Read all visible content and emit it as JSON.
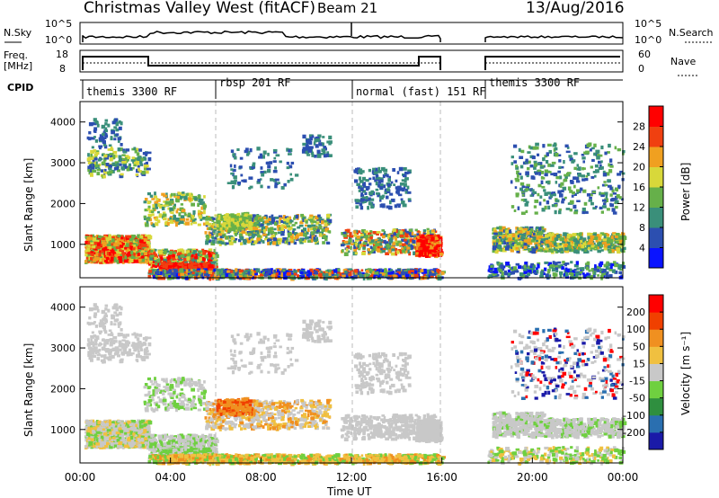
{
  "header": {
    "title": "Christmas Valley West (fitACF)",
    "beam": "Beam 21",
    "date": "13/Aug/2016"
  },
  "top_panels": {
    "nsky_label": "N.Sky",
    "nsky_ticks": [
      "10^5",
      "10^0"
    ],
    "nsearch_label": "N.Search",
    "nsearch_ticks": [
      "10^5",
      "10^0"
    ],
    "freq_label": "Freq.",
    "freq_unit": "[MHz]",
    "freq_ticks": [
      "18",
      "8"
    ],
    "nave_label": "Nave",
    "nave_ticks": [
      "60",
      "0"
    ],
    "cpid_label": "CPID",
    "cpid_segments": [
      "themis 3300 RF",
      "rbsp 201 RF",
      "normal (fast) 151 RF",
      "themis 3300 RF"
    ]
  },
  "chart_data": [
    {
      "type": "heatmap",
      "name": "power",
      "ylabel": "Slant Range [km]",
      "ylim": [
        180,
        4500
      ],
      "yticks": [
        "4000",
        "3000",
        "2000",
        "1000"
      ],
      "xlim": [
        0,
        24
      ],
      "colorbar_label": "Power [dB]",
      "colorbar_ticks": [
        "28",
        "24",
        "20",
        "16",
        "12",
        "8",
        "4"
      ],
      "colors": [
        "#0a14ff",
        "#2c4fb0",
        "#3a8f7a",
        "#66b04a",
        "#d8d83a",
        "#f0a020",
        "#f04010",
        "#ff0000"
      ]
    },
    {
      "type": "heatmap",
      "name": "velocity",
      "ylabel": "Slant Range [km]",
      "ylim": [
        180,
        4500
      ],
      "yticks": [
        "4000",
        "3000",
        "2000",
        "1000"
      ],
      "xlim": [
        0,
        24
      ],
      "xticks": [
        "00:00",
        "04:00",
        "08:00",
        "12:00",
        "16:00",
        "20:00",
        "00:00"
      ],
      "xlabel": "Time UT",
      "colorbar_label": "Velocity [m s⁻¹]",
      "colorbar_ticks": [
        "200",
        "100",
        "50",
        "15",
        "-15",
        "-50",
        "-100",
        "-200"
      ],
      "colors": [
        "#1a1aa8",
        "#2a6fb0",
        "#2f8f3f",
        "#6fd040",
        "#c8c8c8",
        "#f0c040",
        "#f09020",
        "#f04000",
        "#ff0000"
      ]
    }
  ]
}
